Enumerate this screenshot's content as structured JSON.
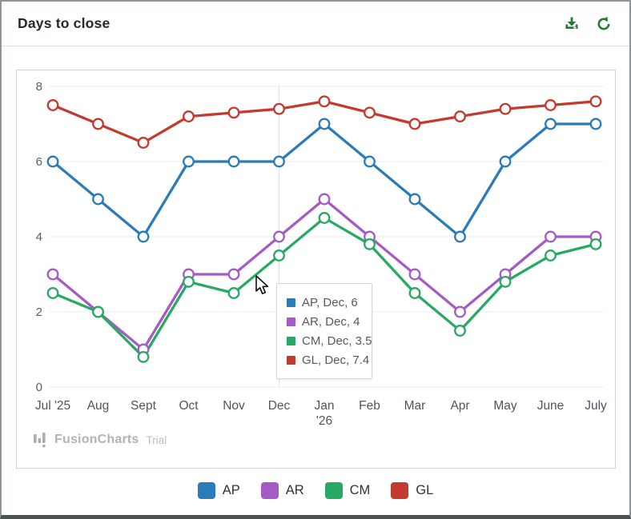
{
  "header": {
    "title": "Days to close",
    "icon_color": "#1e7d32"
  },
  "chart_data": {
    "type": "line",
    "title": "Days to close",
    "categories": [
      "Jul '25",
      "Aug",
      "Sept",
      "Oct",
      "Nov",
      "Dec",
      "Jan '26",
      "Feb",
      "Mar",
      "Apr",
      "May",
      "June",
      "July"
    ],
    "series": [
      {
        "name": "AP",
        "color": "#2b7bb9",
        "values": [
          6,
          5,
          4,
          6,
          6,
          6,
          7,
          6,
          5,
          4,
          6,
          7,
          7
        ]
      },
      {
        "name": "AR",
        "color": "#a45bc4",
        "values": [
          3,
          2,
          1,
          3,
          3,
          4,
          5,
          4,
          3,
          2,
          3,
          4,
          4
        ]
      },
      {
        "name": "CM",
        "color": "#28a963",
        "values": [
          2.5,
          2,
          0.8,
          2.8,
          2.5,
          3.5,
          4.5,
          3.8,
          2.5,
          1.5,
          2.8,
          3.5,
          3.8
        ]
      },
      {
        "name": "GL",
        "color": "#c33a2f",
        "values": [
          7.5,
          7,
          6.5,
          7.2,
          7.3,
          7.4,
          7.6,
          7.3,
          7,
          7.2,
          7.4,
          7.5,
          7.6
        ]
      }
    ],
    "yticks": [
      0,
      2,
      4,
      6,
      8
    ],
    "ylim": [
      0,
      8
    ],
    "xlabel": "",
    "ylabel": "",
    "grid": "horizontal",
    "legend_position": "bottom",
    "hover_category_index": 5
  },
  "tooltip": {
    "rows": [
      {
        "color": "#2b7bb9",
        "text": "AP, Dec, 6"
      },
      {
        "color": "#a45bc4",
        "text": "AR, Dec, 4"
      },
      {
        "color": "#28a963",
        "text": "CM, Dec, 3.5"
      },
      {
        "color": "#c33a2f",
        "text": "GL, Dec, 7.4"
      }
    ]
  },
  "watermark": {
    "brand": "FusionCharts",
    "suffix": "Trial"
  }
}
